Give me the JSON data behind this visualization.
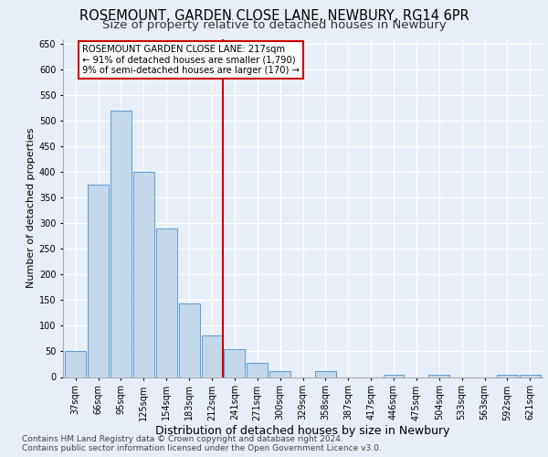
{
  "title1": "ROSEMOUNT, GARDEN CLOSE LANE, NEWBURY, RG14 6PR",
  "title2": "Size of property relative to detached houses in Newbury",
  "xlabel": "Distribution of detached houses by size in Newbury",
  "ylabel": "Number of detached properties",
  "footnote1": "Contains HM Land Registry data © Crown copyright and database right 2024.",
  "footnote2": "Contains public sector information licensed under the Open Government Licence v3.0.",
  "categories": [
    "37sqm",
    "66sqm",
    "95sqm",
    "125sqm",
    "154sqm",
    "183sqm",
    "212sqm",
    "241sqm",
    "271sqm",
    "300sqm",
    "329sqm",
    "358sqm",
    "387sqm",
    "417sqm",
    "446sqm",
    "475sqm",
    "504sqm",
    "533sqm",
    "563sqm",
    "592sqm",
    "621sqm"
  ],
  "values": [
    51,
    375,
    520,
    400,
    290,
    143,
    82,
    55,
    28,
    11,
    0,
    11,
    0,
    0,
    5,
    0,
    5,
    0,
    0,
    4,
    4
  ],
  "bar_color": "#c5d8ea",
  "bar_edge_color": "#5b9bd5",
  "vline_x": 6.5,
  "vline_color": "#cc0000",
  "annotation_line1": "ROSEMOUNT GARDEN CLOSE LANE: 217sqm",
  "annotation_line2": "← 91% of detached houses are smaller (1,790)",
  "annotation_line3": "9% of semi-detached houses are larger (170) →",
  "annotation_box_color": "#cc0000",
  "ylim": [
    0,
    660
  ],
  "yticks": [
    0,
    50,
    100,
    150,
    200,
    250,
    300,
    350,
    400,
    450,
    500,
    550,
    600,
    650
  ],
  "bg_color": "#e8eef7",
  "grid_color": "#ffffff",
  "title1_fontsize": 10.5,
  "title2_fontsize": 9.5,
  "xlabel_fontsize": 9,
  "ylabel_fontsize": 8,
  "tick_fontsize": 7,
  "footnote_fontsize": 6.5
}
